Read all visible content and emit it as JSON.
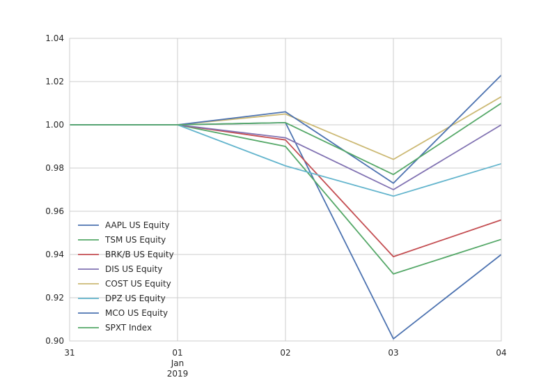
{
  "chart_data": {
    "type": "line",
    "title": "",
    "xlabel": "",
    "ylabel": "",
    "x": [
      "2018-12-31",
      "2019-01-01",
      "2019-01-02",
      "2019-01-03",
      "2019-01-04"
    ],
    "x_tick_labels": [
      "31",
      "01\nJan\n2019",
      "02",
      "03",
      "04"
    ],
    "ylim": [
      0.9,
      1.04
    ],
    "y_ticks": [
      0.9,
      0.92,
      0.94,
      0.96,
      0.98,
      1.0,
      1.02,
      1.04
    ],
    "y_tick_labels": [
      "0.90",
      "0.92",
      "0.94",
      "0.96",
      "0.98",
      "1.00",
      "1.02",
      "1.04"
    ],
    "grid": true,
    "legend_position": "lower-left",
    "series": [
      {
        "name": "AAPL US Equity",
        "color": "#4c72b0",
        "values": [
          1.0,
          1.0,
          1.001,
          0.901,
          0.94
        ]
      },
      {
        "name": "TSM US Equity",
        "color": "#55a868",
        "values": [
          1.0,
          1.0,
          0.99,
          0.931,
          0.947
        ]
      },
      {
        "name": "BRK/B US Equity",
        "color": "#c44e52",
        "values": [
          1.0,
          1.0,
          0.993,
          0.939,
          0.956
        ]
      },
      {
        "name": "DIS US Equity",
        "color": "#8172b2",
        "values": [
          1.0,
          1.0,
          0.994,
          0.97,
          1.0
        ]
      },
      {
        "name": "COST US Equity",
        "color": "#ccb974",
        "values": [
          1.0,
          1.0,
          1.005,
          0.984,
          1.013
        ]
      },
      {
        "name": "DPZ US Equity",
        "color": "#64b5cd",
        "values": [
          1.0,
          1.0,
          0.981,
          0.967,
          0.982
        ]
      },
      {
        "name": "MCO US Equity",
        "color": "#4c72b0",
        "values": [
          1.0,
          1.0,
          1.006,
          0.973,
          1.023
        ]
      },
      {
        "name": "SPXT Index",
        "color": "#55a868",
        "values": [
          1.0,
          1.0,
          1.001,
          0.977,
          1.01
        ]
      }
    ]
  }
}
